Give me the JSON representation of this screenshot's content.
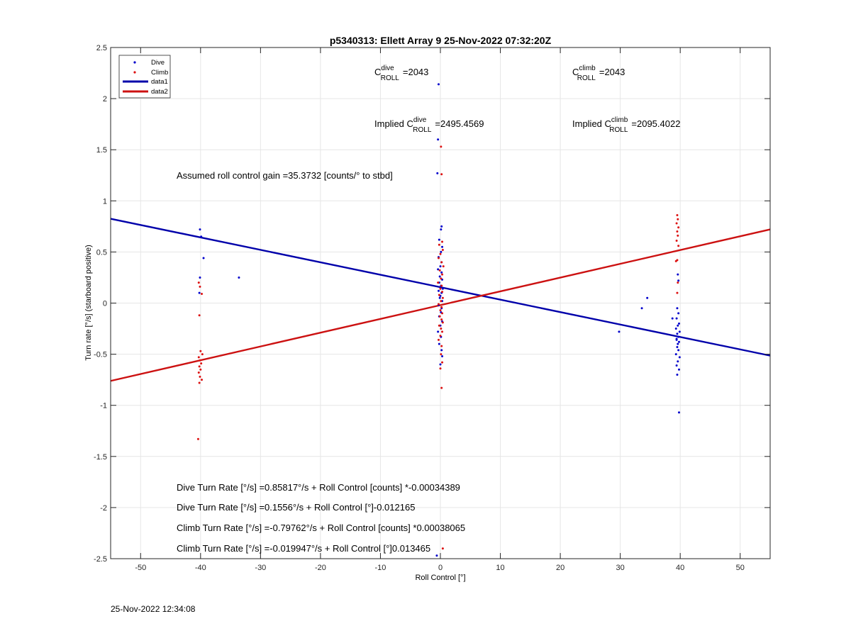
{
  "chart_data": {
    "type": "scatter",
    "title": "p5340313: Ellett Array 9 25-Nov-2022 07:32:20Z",
    "xlabel": "Roll Control [°]",
    "ylabel": "Turn rate [°/s] (starboard positive)",
    "xlim": [
      -55,
      55
    ],
    "ylim": [
      -2.5,
      2.5
    ],
    "xticks": [
      -50,
      -40,
      -30,
      -20,
      -10,
      0,
      10,
      20,
      30,
      40,
      50
    ],
    "yticks": [
      -2.5,
      -2,
      -1.5,
      -1,
      -0.5,
      0,
      0.5,
      1,
      1.5,
      2,
      2.5
    ],
    "grid": true,
    "legend_position": "top-left",
    "legend": [
      {
        "label": "Dive",
        "kind": "marker",
        "color": "#0000cc"
      },
      {
        "label": "Climb",
        "kind": "marker",
        "color": "#dd1111"
      },
      {
        "label": "data1",
        "kind": "line",
        "color": "#0000aa"
      },
      {
        "label": "data2",
        "kind": "line",
        "color": "#cc1111"
      }
    ],
    "annotations": {
      "c_dive": {
        "base": "C",
        "sup": "dive",
        "sub": "ROLL",
        "value": "=2043"
      },
      "c_climb": {
        "base": "C",
        "sup": "climb",
        "sub": "ROLL",
        "value": "=2043"
      },
      "implied_dive": {
        "prefix": "Implied ",
        "base": "C",
        "sup": "dive",
        "sub": "ROLL",
        "value": "=2495.4569"
      },
      "implied_climb": {
        "prefix": "Implied ",
        "base": "C",
        "sup": "climb",
        "sub": "ROLL",
        "value": "=2095.4022"
      },
      "gain": "Assumed roll control gain =35.3732 [counts/° to stbd]",
      "fit1": "Dive Turn Rate [°/s] =0.85817°/s + Roll Control [counts] *-0.00034389",
      "fit2": "Dive Turn Rate [°/s] =0.1556°/s + Roll Control [°]-0.012165",
      "fit3": "Climb Turn Rate [°/s] =-0.79762°/s + Roll Control [counts] *0.00038065",
      "fit4": "Climb Turn Rate [°/s] =-0.019947°/s + Roll Control [°]0.013465"
    },
    "series": [
      {
        "name": "data1",
        "type": "line",
        "color": "#0000aa",
        "x": [
          -55,
          55
        ],
        "y": [
          0.825,
          -0.514
        ]
      },
      {
        "name": "data2",
        "type": "line",
        "color": "#cc1111",
        "x": [
          -55,
          55
        ],
        "y": [
          -0.761,
          0.721
        ]
      },
      {
        "name": "Dive",
        "type": "scatter",
        "color": "#0000cc",
        "x": [
          -40.1,
          -39.9,
          -39.5,
          -40.1,
          -40.2,
          -33.6,
          -0.3,
          -0.4,
          -0.5,
          0.2,
          0.1,
          -0.2,
          0.3,
          0.1,
          -0.3,
          0.2,
          0.0,
          -0.4,
          0.2,
          -0.1,
          0.3,
          -0.2,
          0.1,
          0.4,
          -0.3,
          0.2,
          0.0,
          -0.1,
          0.3,
          -0.3,
          0.2,
          0.1,
          -0.2,
          0.3,
          0.0,
          -0.4,
          0.1,
          -0.2,
          0.2,
          0.3,
          0.0,
          -0.6,
          29.8,
          33.6,
          34.5,
          38.7,
          39.5,
          39.7,
          39.4,
          39.8,
          39.6,
          39.3,
          39.9,
          39.5,
          39.7,
          39.4,
          39.8,
          39.6,
          39.5,
          39.7,
          39.3,
          39.9,
          39.6,
          39.4,
          39.8,
          39.5,
          39.7,
          39.6,
          39.4,
          39.8
        ],
        "y": [
          0.72,
          0.65,
          0.44,
          0.25,
          0.1,
          0.25,
          2.14,
          1.6,
          1.27,
          0.75,
          0.72,
          0.62,
          0.55,
          0.5,
          0.45,
          0.4,
          0.36,
          0.33,
          0.3,
          0.26,
          0.23,
          0.2,
          0.17,
          0.14,
          0.12,
          0.1,
          0.07,
          0.05,
          0.02,
          -0.02,
          -0.05,
          -0.09,
          -0.13,
          -0.18,
          -0.22,
          -0.28,
          -0.33,
          -0.4,
          -0.46,
          -0.52,
          -0.6,
          -2.47,
          -0.28,
          -0.05,
          0.05,
          -0.15,
          -0.05,
          -0.1,
          -0.15,
          -0.2,
          -0.22,
          -0.25,
          -0.28,
          -0.3,
          -0.33,
          -0.35,
          -0.38,
          -0.4,
          -0.43,
          -0.46,
          -0.5,
          -0.53,
          -0.57,
          -0.61,
          -0.65,
          -0.7,
          0.22,
          0.28,
          -0.36,
          -1.07
        ]
      },
      {
        "name": "Climb",
        "type": "scatter",
        "color": "#dd1111",
        "x": [
          -40.3,
          -40.1,
          -39.8,
          -40.2,
          -40.0,
          -39.7,
          -40.3,
          -40.1,
          -39.9,
          -40.2,
          -40.0,
          -40.3,
          -40.1,
          -39.8,
          -40.2,
          -40.4,
          0.1,
          0.2,
          0.3,
          -0.2,
          0.4,
          0.0,
          -0.3,
          0.2,
          0.5,
          -0.1,
          0.3,
          0.1,
          -0.4,
          0.2,
          0.0,
          0.3,
          -0.2,
          0.4,
          0.1,
          -0.3,
          0.2,
          0.0,
          0.3,
          -0.1,
          0.2,
          0.4,
          -0.2,
          0.1,
          0.3,
          0.0,
          -0.3,
          0.2,
          0.1,
          0.3,
          0.0,
          0.2,
          0.4,
          39.5,
          39.6,
          39.4,
          39.7,
          39.5,
          39.6,
          39.4,
          39.7,
          39.5,
          39.3,
          39.6,
          39.5
        ],
        "y": [
          0.2,
          0.16,
          0.09,
          -0.12,
          -0.47,
          -0.5,
          -0.53,
          -0.56,
          -0.59,
          -0.62,
          -0.65,
          -0.68,
          -0.72,
          -0.75,
          -0.78,
          -1.33,
          1.53,
          1.26,
          0.6,
          0.57,
          0.52,
          0.48,
          0.44,
          0.4,
          0.36,
          0.32,
          0.28,
          0.24,
          0.2,
          0.17,
          0.14,
          0.11,
          0.08,
          0.05,
          0.02,
          -0.01,
          -0.04,
          -0.07,
          -0.1,
          -0.13,
          -0.16,
          -0.19,
          -0.22,
          -0.25,
          -0.28,
          -0.32,
          -0.36,
          -0.42,
          -0.5,
          -0.58,
          -0.64,
          -0.83,
          -2.4,
          0.86,
          0.82,
          0.78,
          0.74,
          0.7,
          0.66,
          0.61,
          0.56,
          0.42,
          0.41,
          0.2,
          0.1
        ]
      }
    ]
  },
  "footer": {
    "printed_time": "25-Nov-2022 12:34:08"
  }
}
